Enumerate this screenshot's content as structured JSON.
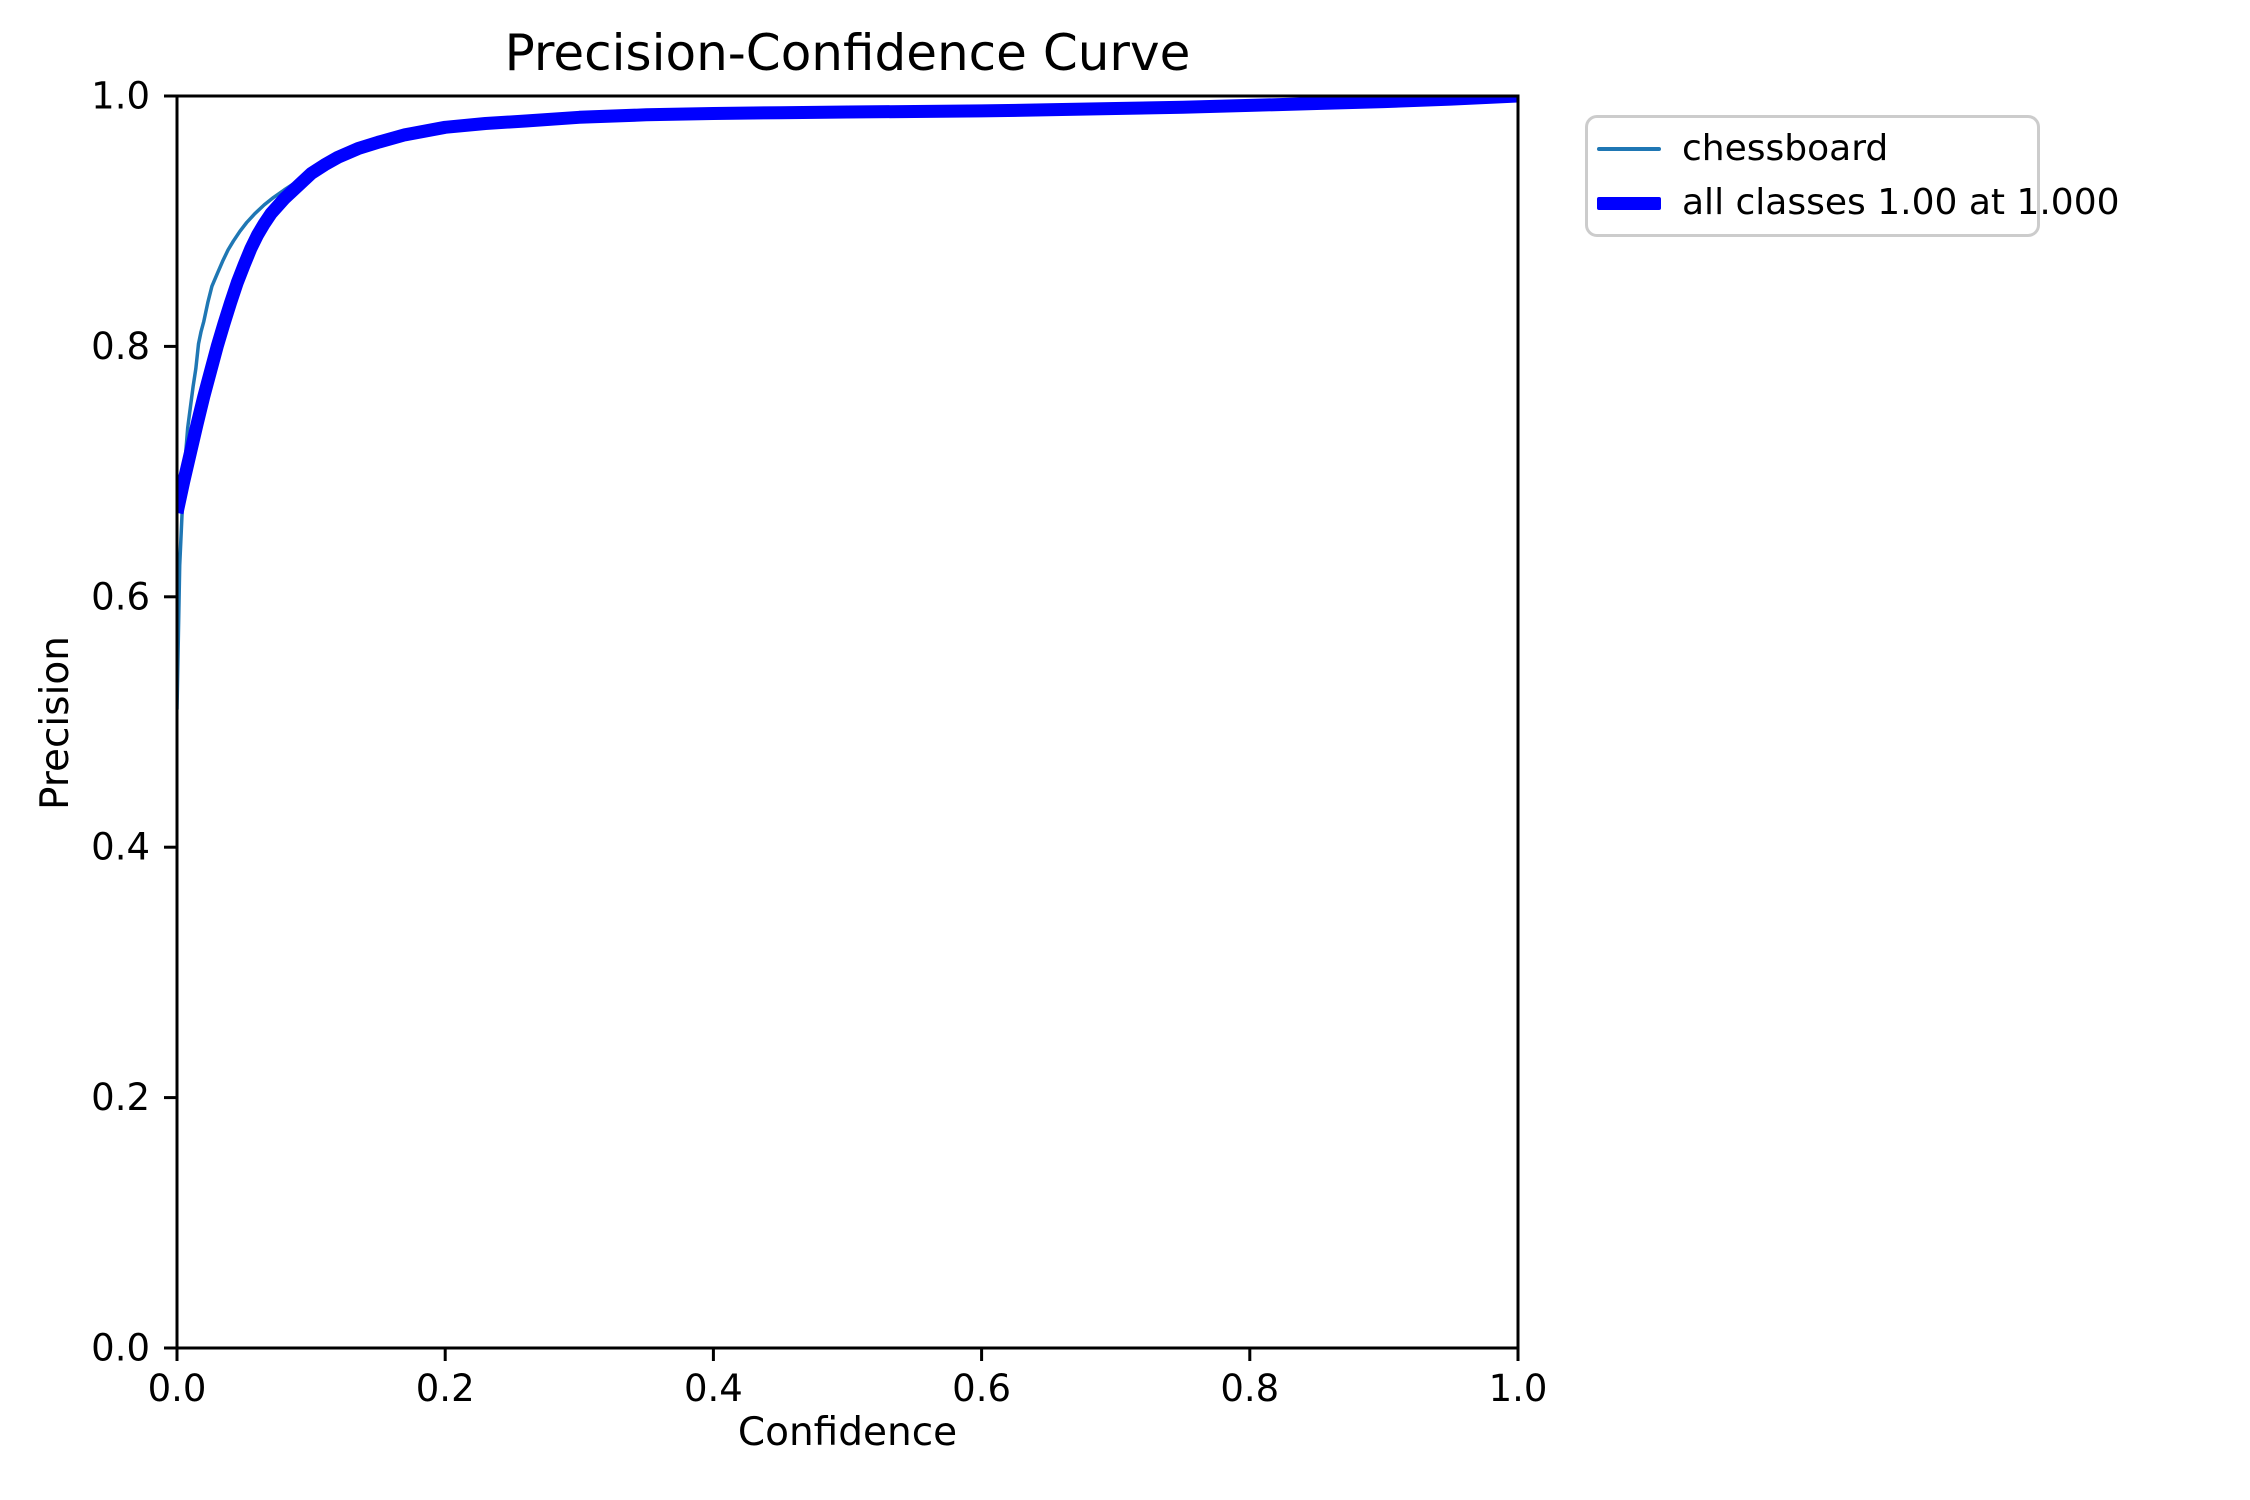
{
  "chart_data": {
    "type": "line",
    "title": "Precision-Confidence Curve",
    "xlabel": "Confidence",
    "ylabel": "Precision",
    "xlim": [
      0.0,
      1.0
    ],
    "ylim": [
      0.0,
      1.0
    ],
    "xticks": [
      "0.0",
      "0.2",
      "0.4",
      "0.6",
      "0.8",
      "1.0"
    ],
    "yticks": [
      "0.0",
      "0.2",
      "0.4",
      "0.6",
      "0.8",
      "1.0"
    ],
    "grid": false,
    "legend_position": "outside-upper-right",
    "spine_color": "#000000",
    "legend_border_color": "#cccccc",
    "series": [
      {
        "name": "chessboard",
        "color": "#1f77b4",
        "linewidth": 3.5,
        "legend_sample_thickness": 4,
        "x": [
          0.0,
          0.002,
          0.005,
          0.008,
          0.012,
          0.014,
          0.016,
          0.018,
          0.02,
          0.023,
          0.026,
          0.03,
          0.034,
          0.038,
          0.042,
          0.047,
          0.052,
          0.058,
          0.065,
          0.072,
          0.08,
          0.09,
          0.1,
          0.11,
          0.12,
          0.135,
          0.15,
          0.17,
          0.2,
          0.23,
          0.26,
          0.3,
          0.35,
          0.4,
          0.45,
          0.5,
          0.55,
          0.6,
          0.65,
          0.7,
          0.75,
          0.8,
          0.85,
          0.9,
          0.95,
          1.0
        ],
        "y": [
          0.51,
          0.625,
          0.695,
          0.735,
          0.768,
          0.782,
          0.802,
          0.812,
          0.82,
          0.835,
          0.848,
          0.858,
          0.868,
          0.877,
          0.884,
          0.892,
          0.899,
          0.906,
          0.913,
          0.919,
          0.925,
          0.932,
          0.94,
          0.947,
          0.953,
          0.96,
          0.9655,
          0.971,
          0.9765,
          0.9795,
          0.9815,
          0.984,
          0.9857,
          0.9868,
          0.9873,
          0.9877,
          0.9881,
          0.9886,
          0.9895,
          0.9905,
          0.9915,
          0.9928,
          0.994,
          0.9955,
          0.9975,
          1.0
        ]
      },
      {
        "name": "all classes 1.00 at 1.000",
        "color": "#0000ff",
        "linewidth": 13,
        "legend_sample_thickness": 13,
        "x": [
          0.0,
          0.005,
          0.01,
          0.015,
          0.02,
          0.025,
          0.03,
          0.035,
          0.04,
          0.045,
          0.05,
          0.055,
          0.06,
          0.065,
          0.07,
          0.08,
          0.09,
          0.1,
          0.11,
          0.12,
          0.135,
          0.15,
          0.17,
          0.2,
          0.23,
          0.26,
          0.3,
          0.35,
          0.4,
          0.45,
          0.5,
          0.55,
          0.6,
          0.65,
          0.7,
          0.75,
          0.8,
          0.85,
          0.9,
          0.95,
          1.0
        ],
        "y": [
          0.667,
          0.692,
          0.715,
          0.738,
          0.76,
          0.78,
          0.8,
          0.818,
          0.835,
          0.851,
          0.865,
          0.878,
          0.889,
          0.898,
          0.906,
          0.918,
          0.928,
          0.938,
          0.945,
          0.951,
          0.958,
          0.963,
          0.969,
          0.975,
          0.978,
          0.98,
          0.983,
          0.985,
          0.986,
          0.9867,
          0.9872,
          0.9876,
          0.9881,
          0.989,
          0.99,
          0.991,
          0.9925,
          0.994,
          0.9955,
          0.9975,
          1.0
        ]
      }
    ]
  }
}
